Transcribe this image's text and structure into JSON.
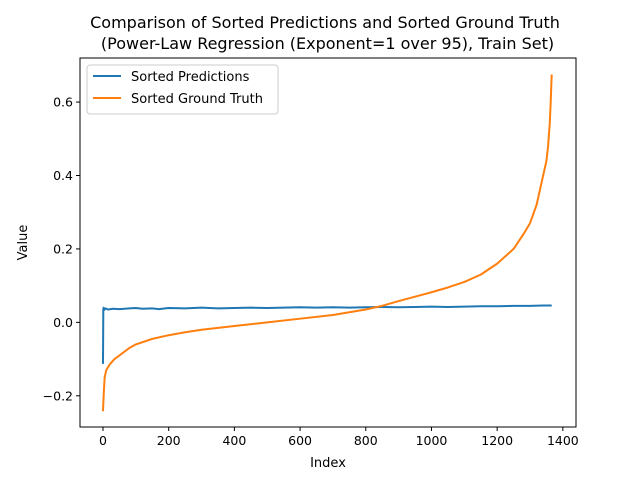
{
  "chart_data": {
    "type": "line",
    "title": "Comparison of Sorted Predictions and Sorted Ground Truth",
    "subtitle": " (Power-Law Regression (Exponent=1 over 95), Train Set)",
    "xlabel": "Index",
    "ylabel": "Value",
    "xlim": [
      -70,
      1440
    ],
    "ylim": [
      -0.285,
      0.72
    ],
    "xticks": [
      {
        "value": 0,
        "label": "0"
      },
      {
        "value": 200,
        "label": "200"
      },
      {
        "value": 400,
        "label": "400"
      },
      {
        "value": 600,
        "label": "600"
      },
      {
        "value": 800,
        "label": "800"
      },
      {
        "value": 1000,
        "label": "1000"
      },
      {
        "value": 1200,
        "label": "1200"
      },
      {
        "value": 1400,
        "label": "1400"
      }
    ],
    "yticks": [
      {
        "value": -0.2,
        "label": "−0.2"
      },
      {
        "value": 0.0,
        "label": "0.0"
      },
      {
        "value": 0.2,
        "label": "0.2"
      },
      {
        "value": 0.4,
        "label": "0.4"
      },
      {
        "value": 0.6,
        "label": "0.6"
      }
    ],
    "grid": false,
    "legend_position": "top-left",
    "series": [
      {
        "name": "Sorted Predictions",
        "color": "#1f77b4",
        "x": [
          0,
          1,
          2,
          4,
          8,
          15,
          30,
          50,
          80,
          100,
          120,
          150,
          170,
          200,
          250,
          300,
          350,
          400,
          450,
          500,
          550,
          600,
          650,
          700,
          750,
          800,
          850,
          900,
          950,
          1000,
          1050,
          1100,
          1150,
          1200,
          1250,
          1300,
          1340,
          1366
        ],
        "y": [
          -0.113,
          0.036,
          0.04,
          0.034,
          0.038,
          0.035,
          0.037,
          0.036,
          0.038,
          0.039,
          0.037,
          0.038,
          0.036,
          0.039,
          0.038,
          0.04,
          0.038,
          0.039,
          0.04,
          0.039,
          0.04,
          0.041,
          0.04,
          0.041,
          0.04,
          0.041,
          0.042,
          0.041,
          0.042,
          0.043,
          0.042,
          0.043,
          0.044,
          0.044,
          0.045,
          0.045,
          0.046,
          0.046
        ]
      },
      {
        "name": "Sorted Ground Truth",
        "color": "#ff7f0e",
        "x": [
          0,
          2,
          5,
          10,
          20,
          35,
          50,
          80,
          100,
          150,
          200,
          250,
          300,
          350,
          400,
          500,
          600,
          700,
          800,
          850,
          900,
          950,
          1000,
          1050,
          1100,
          1150,
          1200,
          1250,
          1280,
          1300,
          1320,
          1330,
          1340,
          1350,
          1355,
          1360,
          1363,
          1366
        ],
        "y": [
          -0.242,
          -0.2,
          -0.15,
          -0.13,
          -0.115,
          -0.1,
          -0.09,
          -0.07,
          -0.06,
          -0.045,
          -0.035,
          -0.027,
          -0.02,
          -0.015,
          -0.01,
          0.0,
          0.01,
          0.02,
          0.035,
          0.045,
          0.058,
          0.07,
          0.082,
          0.095,
          0.11,
          0.13,
          0.16,
          0.2,
          0.24,
          0.27,
          0.32,
          0.36,
          0.4,
          0.44,
          0.48,
          0.54,
          0.6,
          0.675
        ]
      }
    ]
  }
}
